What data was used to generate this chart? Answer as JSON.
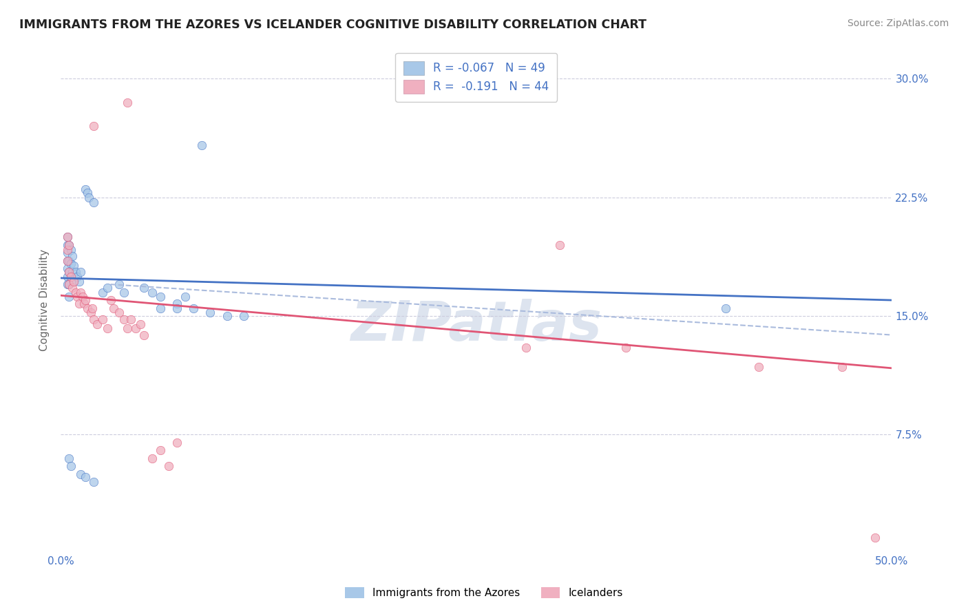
{
  "title": "IMMIGRANTS FROM THE AZORES VS ICELANDER COGNITIVE DISABILITY CORRELATION CHART",
  "source_text": "Source: ZipAtlas.com",
  "ylabel": "Cognitive Disability",
  "xlim": [
    0.0,
    0.5
  ],
  "ylim": [
    0.0,
    0.32
  ],
  "yticks": [
    0.075,
    0.15,
    0.225,
    0.3
  ],
  "ytick_labels": [
    "7.5%",
    "15.0%",
    "22.5%",
    "30.0%"
  ],
  "xticks": [
    0.0,
    0.5
  ],
  "xtick_labels": [
    "0.0%",
    "50.0%"
  ],
  "background_color": "#ffffff",
  "grid_color": "#ccccdd",
  "watermark_text": "ZIPatlas",
  "legend_label1": "Immigrants from the Azores",
  "legend_label2": "Icelanders",
  "blue_color": "#a8c8e8",
  "pink_color": "#f0b0c0",
  "blue_line_color": "#4472c4",
  "pink_line_color": "#e05575",
  "dash_line_color": "#aabbdd",
  "blue_scatter": [
    [
      0.004,
      0.2
    ],
    [
      0.004,
      0.195
    ],
    [
      0.004,
      0.19
    ],
    [
      0.004,
      0.185
    ],
    [
      0.004,
      0.18
    ],
    [
      0.004,
      0.175
    ],
    [
      0.004,
      0.17
    ],
    [
      0.005,
      0.195
    ],
    [
      0.005,
      0.185
    ],
    [
      0.005,
      0.178
    ],
    [
      0.005,
      0.17
    ],
    [
      0.005,
      0.162
    ],
    [
      0.006,
      0.192
    ],
    [
      0.006,
      0.183
    ],
    [
      0.006,
      0.175
    ],
    [
      0.007,
      0.188
    ],
    [
      0.007,
      0.178
    ],
    [
      0.008,
      0.182
    ],
    [
      0.008,
      0.172
    ],
    [
      0.009,
      0.178
    ],
    [
      0.01,
      0.175
    ],
    [
      0.011,
      0.172
    ],
    [
      0.012,
      0.178
    ],
    [
      0.015,
      0.23
    ],
    [
      0.016,
      0.228
    ],
    [
      0.017,
      0.225
    ],
    [
      0.02,
      0.222
    ],
    [
      0.025,
      0.165
    ],
    [
      0.028,
      0.168
    ],
    [
      0.035,
      0.17
    ],
    [
      0.038,
      0.165
    ],
    [
      0.05,
      0.168
    ],
    [
      0.055,
      0.165
    ],
    [
      0.06,
      0.162
    ],
    [
      0.07,
      0.158
    ],
    [
      0.075,
      0.162
    ],
    [
      0.085,
      0.258
    ],
    [
      0.005,
      0.06
    ],
    [
      0.006,
      0.055
    ],
    [
      0.012,
      0.05
    ],
    [
      0.015,
      0.048
    ],
    [
      0.02,
      0.045
    ],
    [
      0.06,
      0.155
    ],
    [
      0.07,
      0.155
    ],
    [
      0.08,
      0.155
    ],
    [
      0.09,
      0.152
    ],
    [
      0.1,
      0.15
    ],
    [
      0.11,
      0.15
    ],
    [
      0.4,
      0.155
    ]
  ],
  "pink_scatter": [
    [
      0.004,
      0.2
    ],
    [
      0.004,
      0.192
    ],
    [
      0.004,
      0.185
    ],
    [
      0.005,
      0.195
    ],
    [
      0.005,
      0.178
    ],
    [
      0.005,
      0.17
    ],
    [
      0.006,
      0.175
    ],
    [
      0.007,
      0.168
    ],
    [
      0.008,
      0.172
    ],
    [
      0.009,
      0.165
    ],
    [
      0.01,
      0.162
    ],
    [
      0.011,
      0.158
    ],
    [
      0.012,
      0.165
    ],
    [
      0.013,
      0.162
    ],
    [
      0.014,
      0.158
    ],
    [
      0.015,
      0.16
    ],
    [
      0.016,
      0.155
    ],
    [
      0.018,
      0.152
    ],
    [
      0.019,
      0.155
    ],
    [
      0.02,
      0.148
    ],
    [
      0.022,
      0.145
    ],
    [
      0.025,
      0.148
    ],
    [
      0.028,
      0.142
    ],
    [
      0.03,
      0.16
    ],
    [
      0.032,
      0.155
    ],
    [
      0.035,
      0.152
    ],
    [
      0.038,
      0.148
    ],
    [
      0.04,
      0.142
    ],
    [
      0.042,
      0.148
    ],
    [
      0.045,
      0.142
    ],
    [
      0.048,
      0.145
    ],
    [
      0.05,
      0.138
    ],
    [
      0.04,
      0.285
    ],
    [
      0.02,
      0.27
    ],
    [
      0.055,
      0.06
    ],
    [
      0.06,
      0.065
    ],
    [
      0.065,
      0.055
    ],
    [
      0.07,
      0.07
    ],
    [
      0.3,
      0.195
    ],
    [
      0.34,
      0.13
    ],
    [
      0.42,
      0.118
    ],
    [
      0.47,
      0.118
    ],
    [
      0.49,
      0.01
    ],
    [
      0.28,
      0.13
    ]
  ],
  "blue_line": {
    "x0": 0.0,
    "x1": 0.5,
    "y0": 0.174,
    "y1": 0.16
  },
  "dash_line": {
    "x0": 0.03,
    "x1": 0.5,
    "y0": 0.17,
    "y1": 0.138
  },
  "pink_line": {
    "x0": 0.0,
    "x1": 0.5,
    "y0": 0.163,
    "y1": 0.117
  },
  "title_fontsize": 12.5,
  "legend_fontsize": 12,
  "axis_label_fontsize": 11,
  "tick_fontsize": 11,
  "source_fontsize": 10,
  "title_color": "#222222",
  "tick_color": "#4472c4",
  "source_color": "#888888",
  "watermark_color": "#dde4ef",
  "watermark_fontsize": 58
}
